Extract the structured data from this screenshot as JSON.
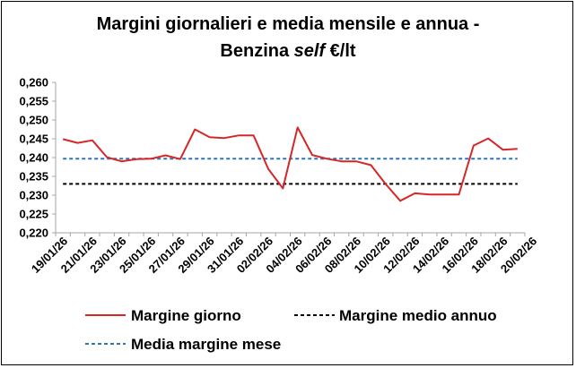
{
  "chart_data": {
    "type": "line",
    "title_line1": "Margini giornalieri e media mensile e annua -",
    "title_line2_prefix": "Benzina ",
    "title_line2_italic": "self",
    "title_line2_suffix": " €/lt",
    "xlabel": "",
    "ylabel": "",
    "ylim": [
      0.22,
      0.26
    ],
    "y_ticks": [
      "0,220",
      "0,225",
      "0,230",
      "0,235",
      "0,240",
      "0,245",
      "0,250",
      "0,255",
      "0,260"
    ],
    "x_tick_labels": [
      "19/01/26",
      "21/01/26",
      "23/01/26",
      "25/01/26",
      "27/01/26",
      "29/01/26",
      "31/01/26",
      "02/02/26",
      "04/02/26",
      "06/02/26",
      "08/02/26",
      "10/02/26",
      "12/02/26",
      "14/02/26",
      "16/02/26",
      "18/02/26",
      "20/02/26"
    ],
    "x": [
      "19/01/26",
      "20/01/26",
      "21/01/26",
      "22/01/26",
      "23/01/26",
      "24/01/26",
      "25/01/26",
      "26/01/26",
      "27/01/26",
      "28/01/26",
      "29/01/26",
      "30/01/26",
      "31/01/26",
      "01/02/26",
      "02/02/26",
      "03/02/26",
      "04/02/26",
      "05/02/26",
      "06/02/26",
      "07/02/26",
      "08/02/26",
      "09/02/26",
      "10/02/26",
      "11/02/26",
      "12/02/26",
      "13/02/26",
      "14/02/26",
      "15/02/26",
      "16/02/26",
      "17/02/26",
      "18/02/26",
      "19/02/26"
    ],
    "series": [
      {
        "name": "Margine giorno",
        "color": "#d62728",
        "style": "solid",
        "values": [
          0.2449,
          0.2439,
          0.2446,
          0.2401,
          0.239,
          0.2396,
          0.2397,
          0.2406,
          0.2396,
          0.2475,
          0.2454,
          0.2452,
          0.2459,
          0.2459,
          0.237,
          0.2318,
          0.248,
          0.2407,
          0.2397,
          0.239,
          0.239,
          0.238,
          0.233,
          0.2285,
          0.2305,
          0.2302,
          0.2302,
          0.2302,
          0.2432,
          0.2451,
          0.2421,
          0.2423
        ]
      },
      {
        "name": "Margine medio annuo",
        "color": "#000000",
        "style": "dashed",
        "values": [
          0.233,
          0.233,
          0.233,
          0.233,
          0.233,
          0.233,
          0.233,
          0.233,
          0.233,
          0.233,
          0.233,
          0.233,
          0.233,
          0.233,
          0.233,
          0.233,
          0.233,
          0.233,
          0.233,
          0.233,
          0.233,
          0.233,
          0.233,
          0.233,
          0.233,
          0.233,
          0.233,
          0.233,
          0.233,
          0.233,
          0.233,
          0.233
        ]
      },
      {
        "name": "Media margine mese",
        "color": "#2e75b6",
        "style": "dashed",
        "values": [
          0.2397,
          0.2397,
          0.2397,
          0.2397,
          0.2397,
          0.2397,
          0.2397,
          0.2397,
          0.2397,
          0.2397,
          0.2397,
          0.2397,
          0.2397,
          0.2397,
          0.2397,
          0.2397,
          0.2397,
          0.2397,
          0.2397,
          0.2397,
          0.2397,
          0.2397,
          0.2397,
          0.2397,
          0.2397,
          0.2397,
          0.2397,
          0.2397,
          0.2397,
          0.2397,
          0.2397,
          0.2397
        ]
      }
    ],
    "grid": false,
    "legend_position": "bottom"
  }
}
